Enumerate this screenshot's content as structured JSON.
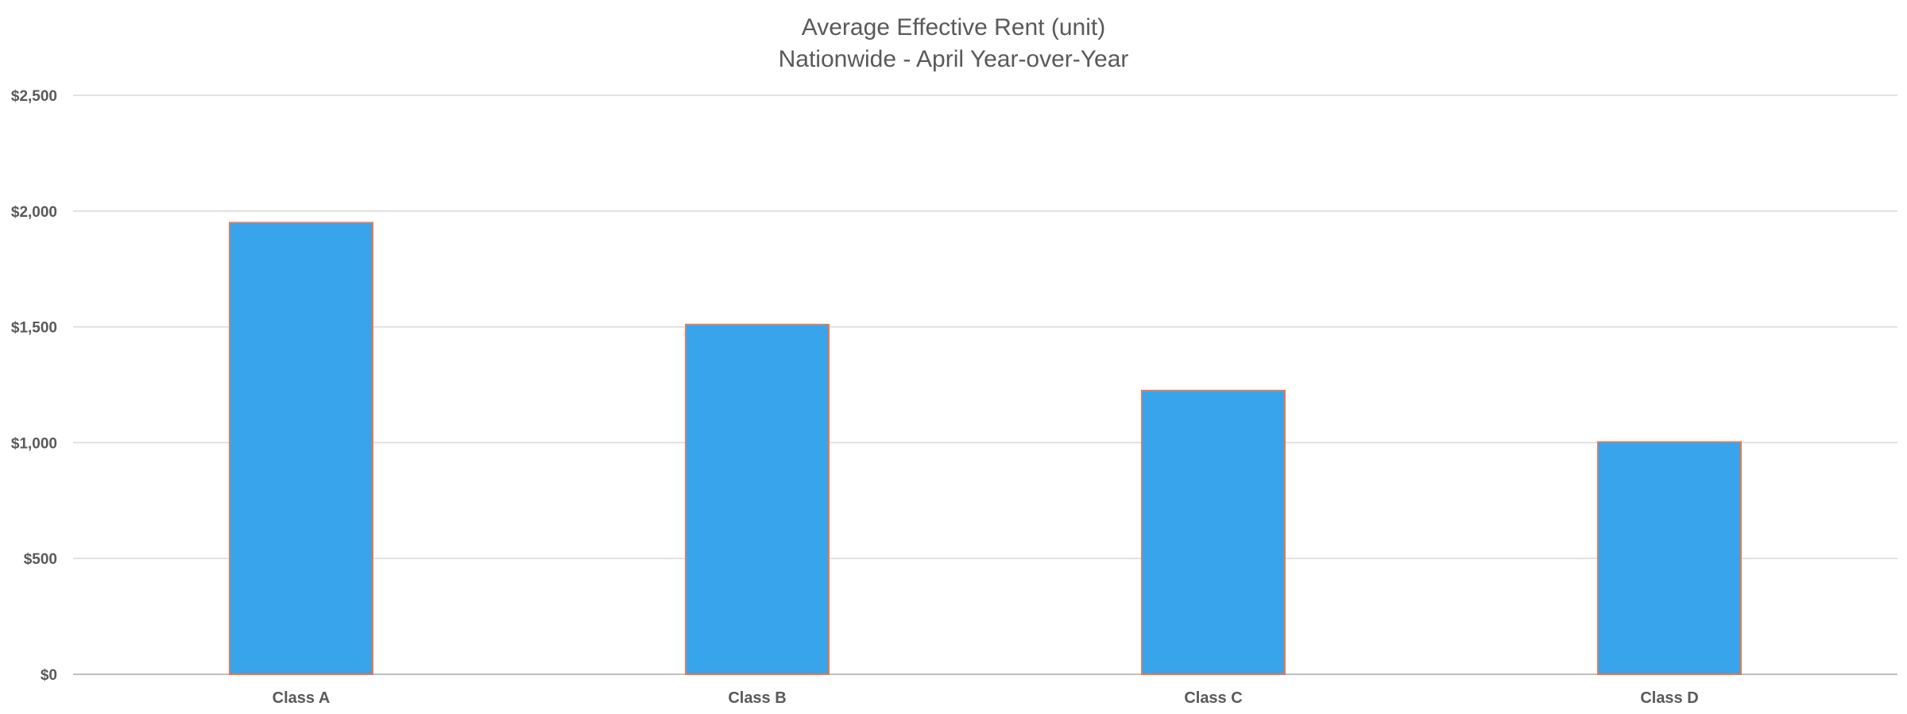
{
  "chart_data": {
    "type": "bar",
    "title": "Average Effective Rent (unit)",
    "subtitle": "Nationwide - April Year-over-Year",
    "categories": [
      "Class A",
      "Class B",
      "Class C",
      "Class D"
    ],
    "values": [
      1950,
      1510,
      1225,
      1003
    ],
    "ylim": [
      0,
      2500
    ],
    "yticks": [
      0,
      500,
      1000,
      1500,
      2000,
      2500
    ],
    "ytick_labels": [
      "$0",
      "$500",
      "$1,000",
      "$1,500",
      "$2,000",
      "$2,500"
    ],
    "grid": true,
    "legend": "none",
    "colors": {
      "bar_fill": "#38A4EC",
      "bar_stroke": "#E07B5B",
      "grid": "#D9D9D9",
      "axis": "#BFBFBF",
      "text": "#595959"
    }
  }
}
